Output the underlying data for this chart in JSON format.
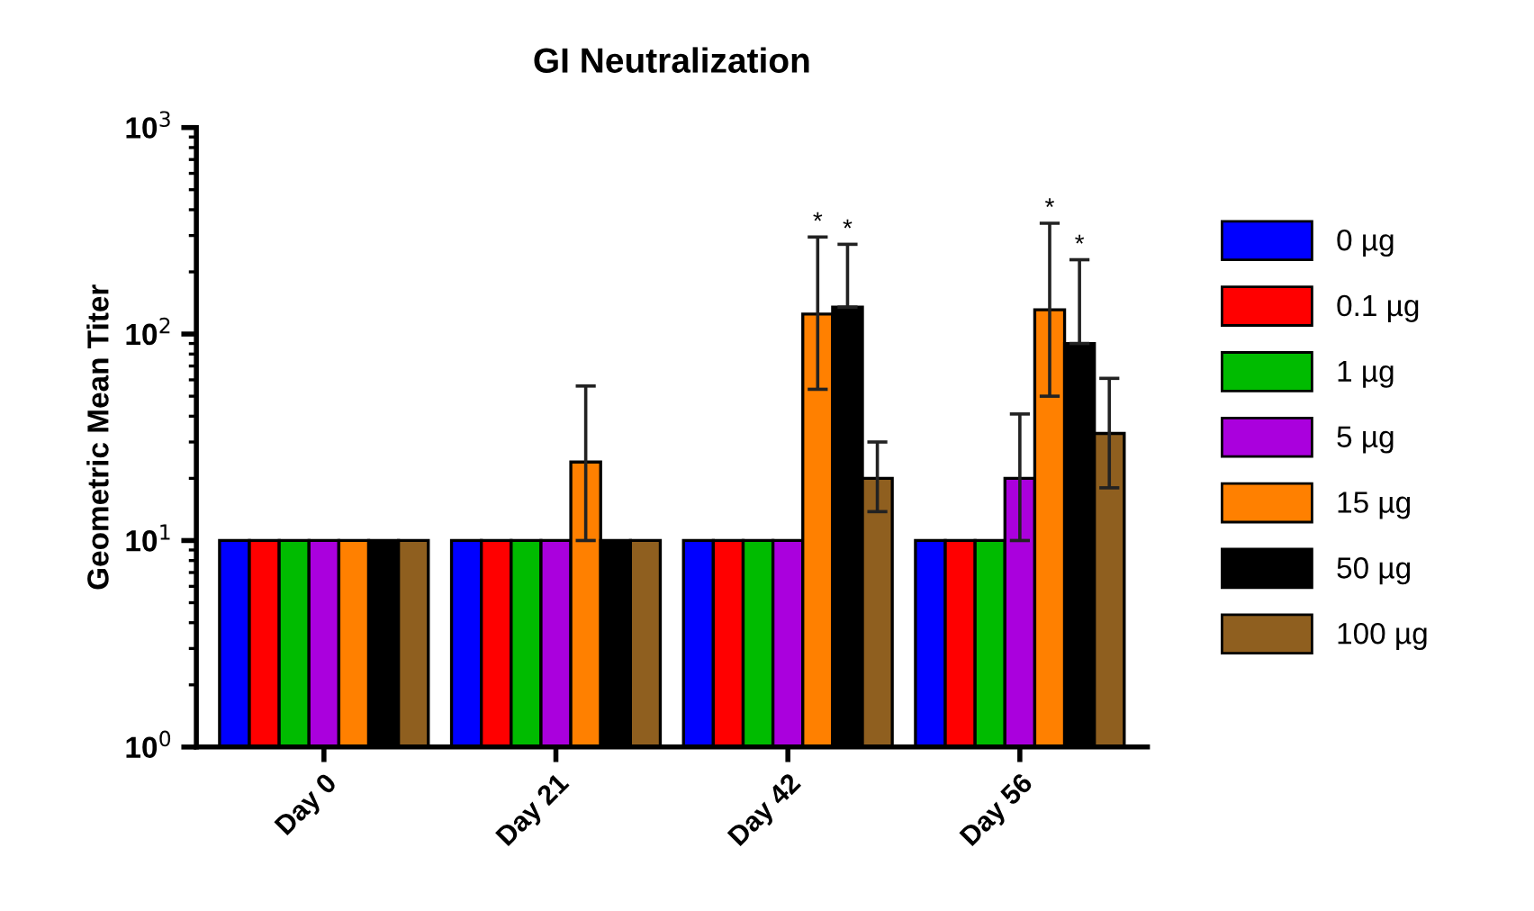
{
  "chart_data": {
    "type": "bar",
    "title": "GI Neutralization",
    "ylabel": "Geometric Mean Titer",
    "categories": [
      "Day 0",
      "Day 21",
      "Day 42",
      "Day 56"
    ],
    "series": [
      {
        "name": "0 µg",
        "color": "#0000ff",
        "values": [
          10,
          10,
          10,
          10
        ]
      },
      {
        "name": "0.1 µg",
        "color": "#ff0000",
        "values": [
          10,
          10,
          10,
          10
        ]
      },
      {
        "name": "1 µg",
        "color": "#00bb00",
        "values": [
          10,
          10,
          10,
          10
        ]
      },
      {
        "name": "5 µg",
        "color": "#aa00dd",
        "values": [
          10,
          10,
          10,
          20
        ],
        "errors": [
          null,
          null,
          null,
          [
            10,
            41
          ]
        ]
      },
      {
        "name": "15 µg",
        "color": "#ff8000",
        "values": [
          10,
          24,
          125,
          131
        ],
        "errors": [
          null,
          [
            10,
            56
          ],
          [
            54,
            295
          ],
          [
            50,
            344
          ]
        ]
      },
      {
        "name": "50 µg",
        "color": "#000000",
        "values": [
          10,
          10,
          135,
          90
        ],
        "errors": [
          null,
          null,
          [
            135,
            272
          ],
          [
            90,
            229
          ]
        ]
      },
      {
        "name": "100 µg",
        "color": "#8f5f1f",
        "values": [
          10,
          10,
          20,
          33
        ],
        "errors": [
          null,
          null,
          [
            13.8,
            30
          ],
          [
            18,
            61
          ]
        ]
      }
    ],
    "log": true,
    "ylim": [
      1,
      1000
    ],
    "yticks": [
      {
        "value": 1,
        "label": "10$^{0}$"
      },
      {
        "value": 10,
        "label": "10$^{1}$"
      },
      {
        "value": 100,
        "label": "10$^{2}$"
      },
      {
        "value": 1000,
        "label": "10$^{3}$"
      }
    ],
    "annotations": [
      "*",
      "*",
      "*",
      "*"
    ],
    "legend": "right",
    "grid": false
  }
}
